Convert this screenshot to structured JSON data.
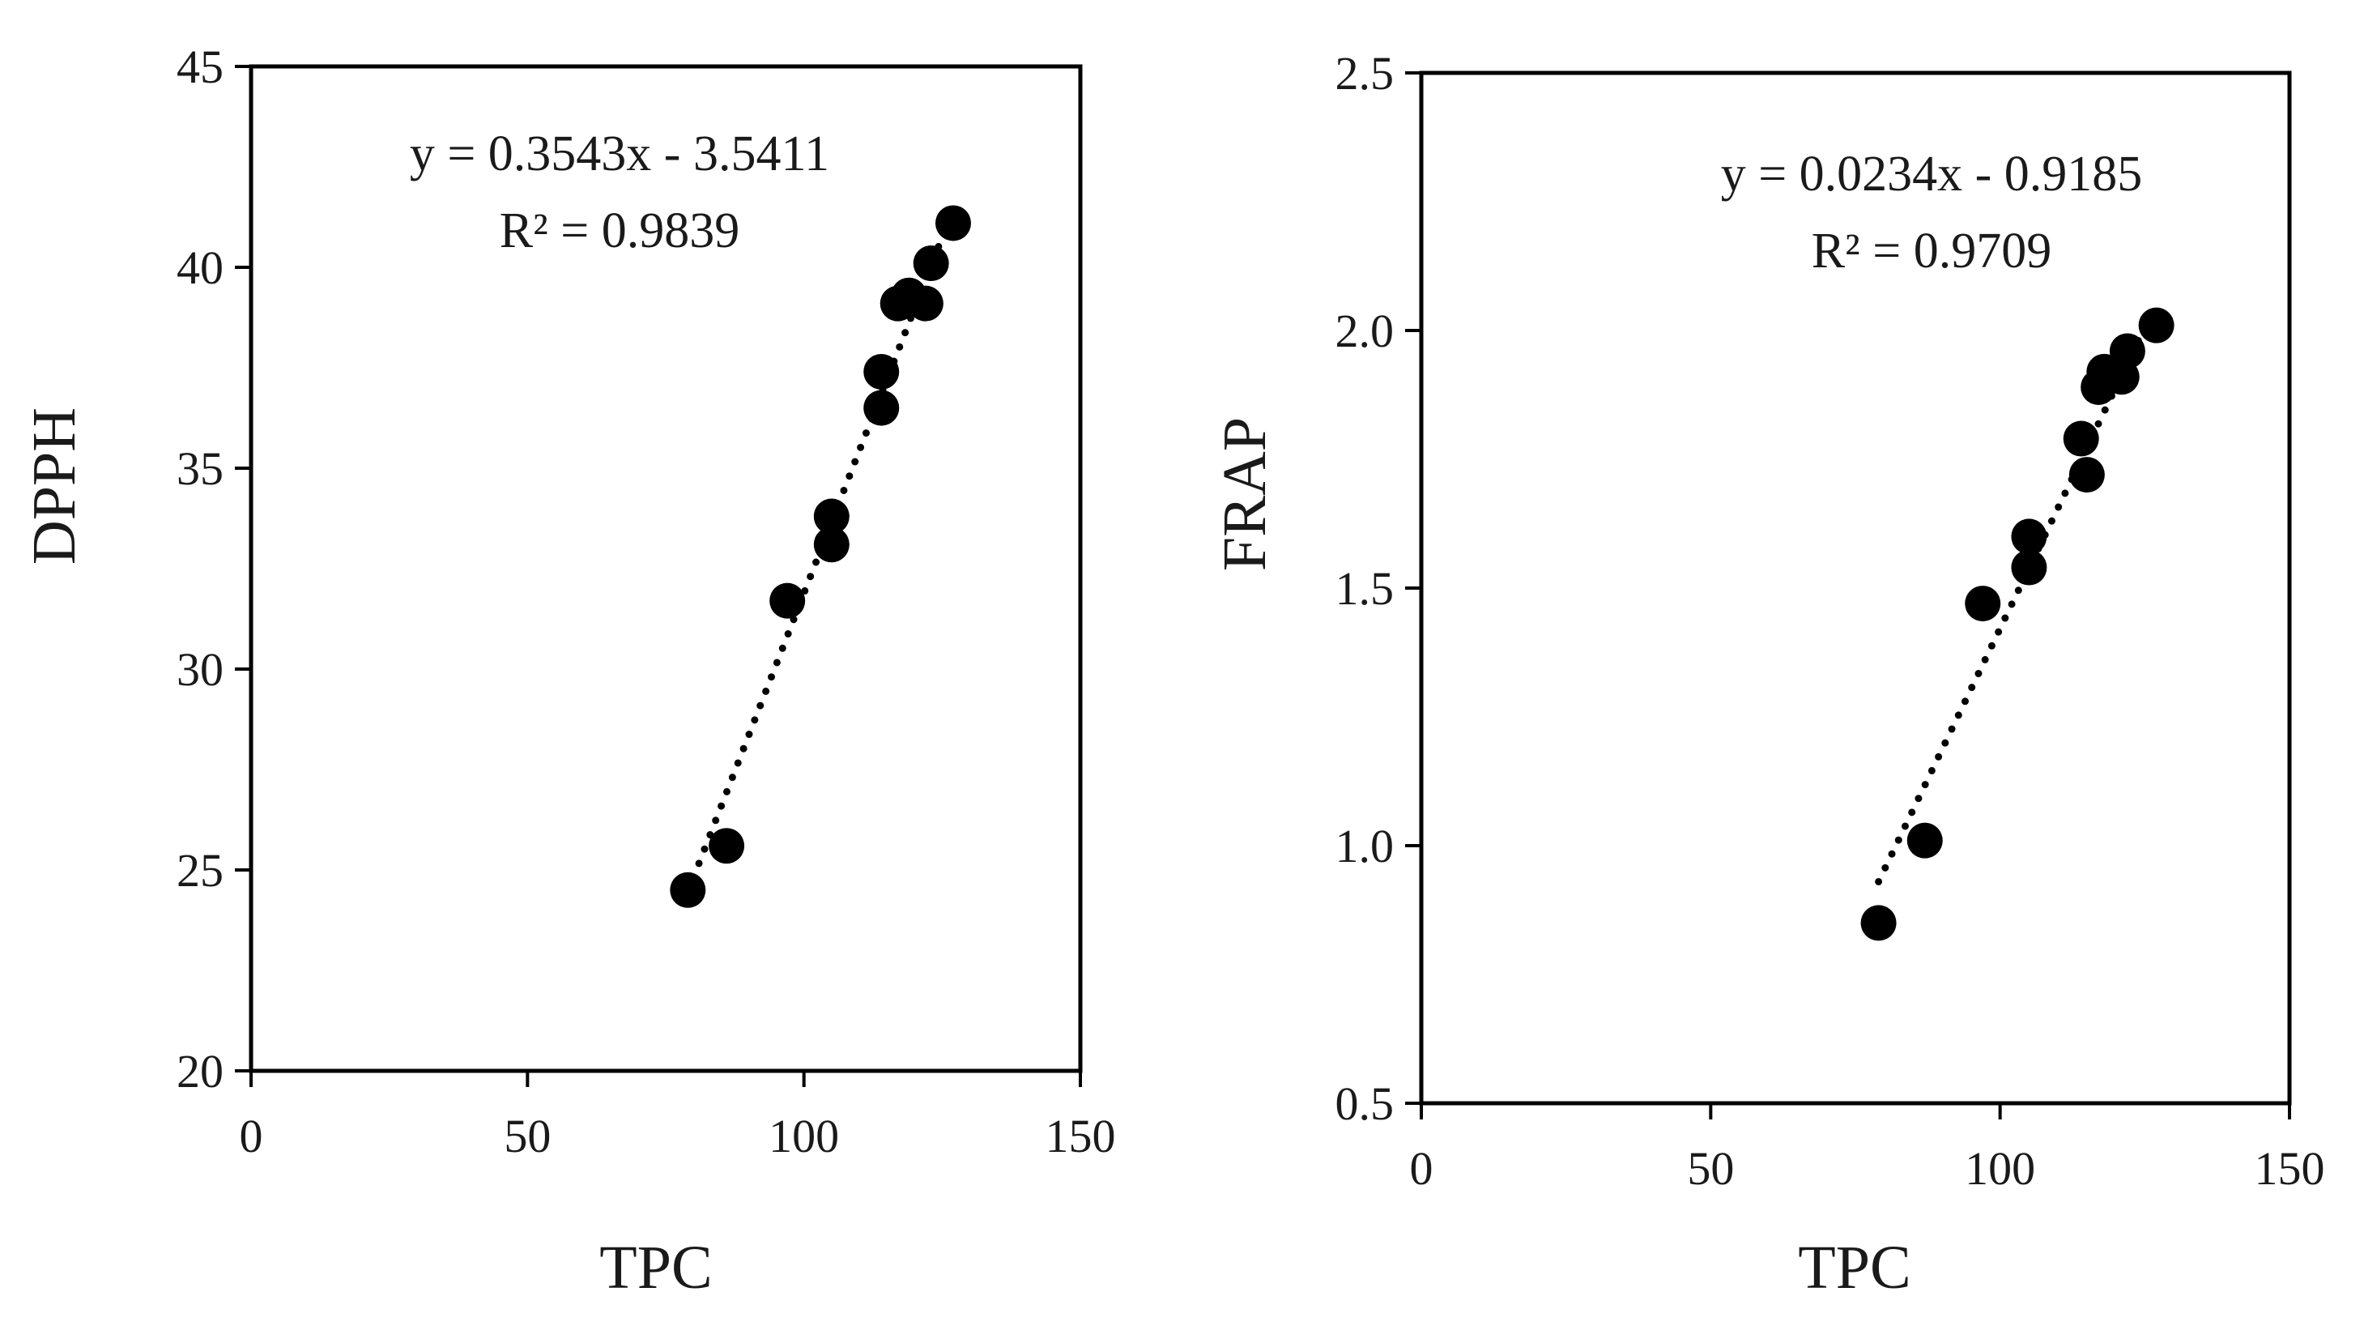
{
  "chart_data": [
    {
      "type": "scatter",
      "xlabel": "TPC",
      "ylabel": "DPPH",
      "xlim": [
        0,
        150
      ],
      "ylim": [
        20,
        45
      ],
      "xticks": [
        "0",
        "50",
        "100",
        "150"
      ],
      "yticks": [
        "20",
        "25",
        "30",
        "35",
        "40",
        "45"
      ],
      "trendline": {
        "style": "dotted",
        "slope": 0.3543,
        "intercept": -3.5411,
        "x_range": [
          79,
          127
        ]
      },
      "annotations": [
        "y = 0.3543x - 3.5411",
        "R² = 0.9839"
      ],
      "grid": false,
      "legend": "none",
      "points": [
        {
          "x": 79,
          "y": 24.5
        },
        {
          "x": 86,
          "y": 25.6
        },
        {
          "x": 97,
          "y": 31.7
        },
        {
          "x": 105,
          "y": 33.8
        },
        {
          "x": 105,
          "y": 33.1
        },
        {
          "x": 114,
          "y": 37.4
        },
        {
          "x": 114,
          "y": 36.5
        },
        {
          "x": 117,
          "y": 39.1
        },
        {
          "x": 119,
          "y": 39.3
        },
        {
          "x": 122,
          "y": 39.1
        },
        {
          "x": 123,
          "y": 40.1
        },
        {
          "x": 127,
          "y": 41.1
        }
      ]
    },
    {
      "type": "scatter",
      "xlabel": "TPC",
      "ylabel": "FRAP",
      "xlim": [
        0,
        150
      ],
      "ylim": [
        0.5,
        2.5
      ],
      "xticks": [
        "0",
        "50",
        "100",
        "150"
      ],
      "yticks": [
        "0.5",
        "1.0",
        "1.5",
        "2.0",
        "2.5"
      ],
      "trendline": {
        "style": "dotted",
        "slope": 0.0234,
        "intercept": -0.9185,
        "x_range": [
          79,
          127
        ]
      },
      "annotations": [
        "y = 0.0234x - 0.9185",
        "R² = 0.9709"
      ],
      "grid": false,
      "legend": "none",
      "points": [
        {
          "x": 79,
          "y": 0.85
        },
        {
          "x": 87,
          "y": 1.01
        },
        {
          "x": 97,
          "y": 1.47
        },
        {
          "x": 105,
          "y": 1.6
        },
        {
          "x": 105,
          "y": 1.54
        },
        {
          "x": 114,
          "y": 1.79
        },
        {
          "x": 115,
          "y": 1.72
        },
        {
          "x": 117,
          "y": 1.89
        },
        {
          "x": 118,
          "y": 1.92
        },
        {
          "x": 121,
          "y": 1.91
        },
        {
          "x": 122,
          "y": 1.96
        },
        {
          "x": 127,
          "y": 2.01
        }
      ]
    }
  ]
}
